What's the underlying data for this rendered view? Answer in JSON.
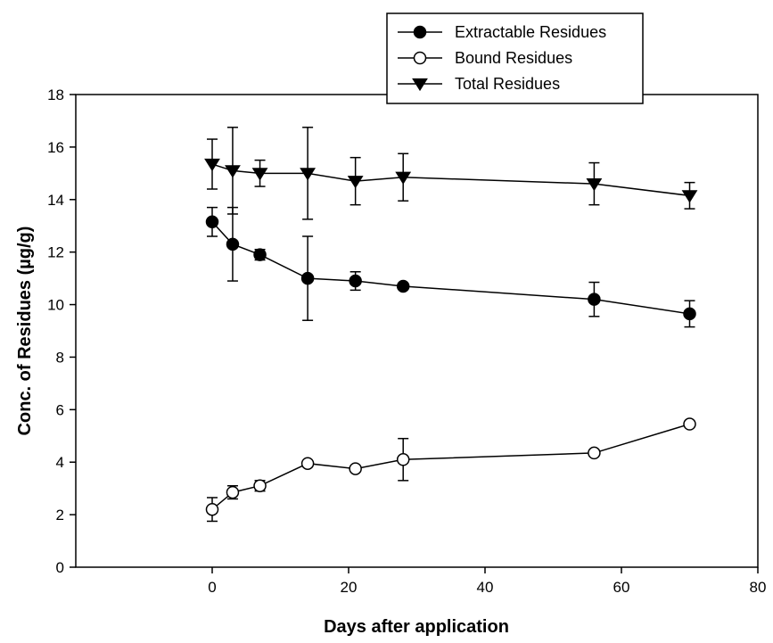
{
  "chart_data": {
    "type": "line",
    "xlabel": "Days after application",
    "ylabel": "Conc. of Residues (µg/g)",
    "xlim": [
      -20,
      80
    ],
    "ylim": [
      0,
      18
    ],
    "x_ticks": [
      0,
      20,
      40,
      60,
      80
    ],
    "y_ticks": [
      0,
      2,
      4,
      6,
      8,
      10,
      12,
      14,
      16,
      18
    ],
    "grid": false,
    "legend_position": "top-right",
    "series": [
      {
        "name": "Extractable Residues",
        "marker": "filled-circle",
        "x": [
          0,
          3,
          7,
          14,
          21,
          28,
          56,
          70
        ],
        "y": [
          13.15,
          12.3,
          11.9,
          11.0,
          10.9,
          10.7,
          10.2,
          9.65
        ],
        "error": [
          0.55,
          1.4,
          0.2,
          1.6,
          0.35,
          0.1,
          0.65,
          0.5
        ]
      },
      {
        "name": "Bound Residues",
        "marker": "open-circle",
        "x": [
          0,
          3,
          7,
          14,
          21,
          28,
          56,
          70
        ],
        "y": [
          2.2,
          2.85,
          3.1,
          3.95,
          3.75,
          4.1,
          4.35,
          5.45
        ],
        "error": [
          0.45,
          0.25,
          0.2,
          0.05,
          0.05,
          0.8,
          0.05,
          0.05
        ]
      },
      {
        "name": "Total Residues",
        "marker": "filled-triangle-down",
        "x": [
          0,
          3,
          7,
          14,
          21,
          28,
          56,
          70
        ],
        "y": [
          15.35,
          15.1,
          15.0,
          15.0,
          14.7,
          14.85,
          14.6,
          14.15
        ],
        "error": [
          0.95,
          1.65,
          0.5,
          1.75,
          0.9,
          0.9,
          0.8,
          0.5
        ]
      }
    ]
  }
}
